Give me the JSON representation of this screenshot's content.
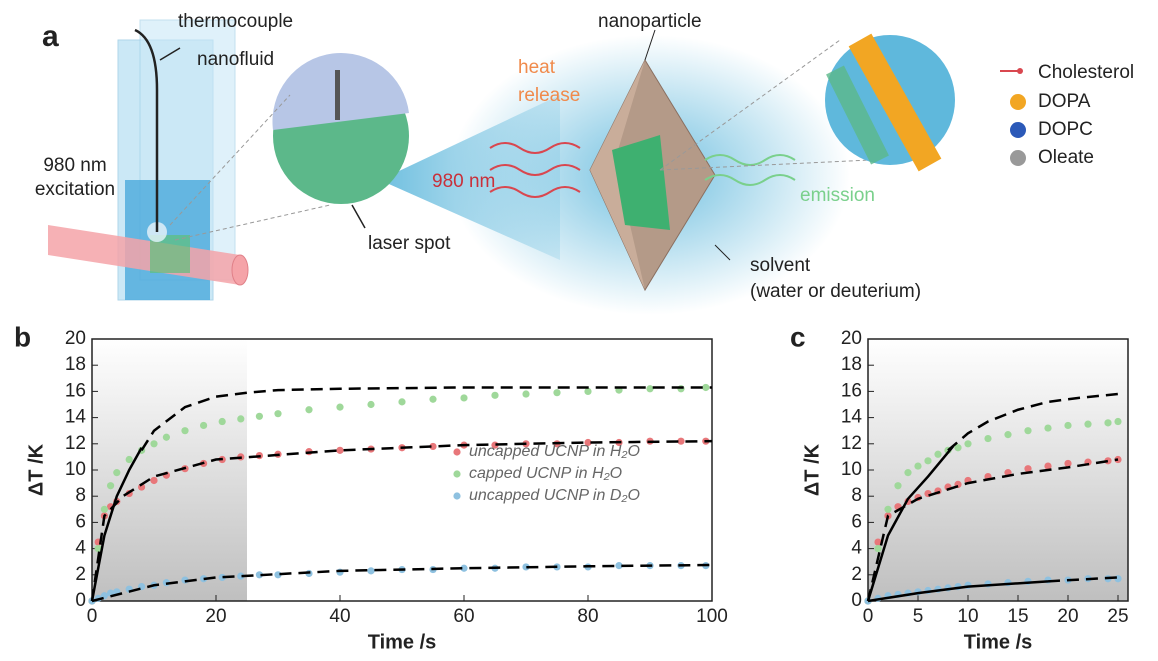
{
  "panel_a": {
    "label": "a",
    "thermocouple": "thermocouple",
    "nanofluid": "nanofluid",
    "excitation": [
      "980 nm",
      "excitation"
    ],
    "laser_spot": "laser spot",
    "nanoparticle": "nanoparticle",
    "heat_release": [
      "heat",
      "release"
    ],
    "wavelength": "980 nm",
    "emission": "emission",
    "solvent": [
      "solvent",
      "(water or deuterium)"
    ],
    "legend": [
      "Cholesterol",
      "DOPA",
      "DOPC",
      "Oleate"
    ]
  },
  "chart_data": [
    {
      "type": "scatter",
      "panel_label": "b",
      "x_label": "Time /s",
      "y_label": "ΔT /K",
      "xlim": [
        0,
        100
      ],
      "ylim": [
        0,
        20
      ],
      "xticks": [
        0,
        20,
        40,
        60,
        80,
        100
      ],
      "yticks": [
        0,
        2,
        4,
        6,
        8,
        10,
        12,
        14,
        16,
        18,
        20
      ],
      "shaded_xlim": [
        0,
        25
      ],
      "legend": "center right",
      "series": [
        {
          "name": "uncapped UCNP in H₂O",
          "color": "#e8777a",
          "mark": "dot",
          "x": [
            0,
            1,
            2,
            3,
            4,
            6,
            8,
            10,
            12,
            15,
            18,
            21,
            24,
            27,
            30,
            35,
            40,
            45,
            50,
            55,
            60,
            65,
            70,
            75,
            80,
            85,
            90,
            95,
            99
          ],
          "values": [
            0,
            4.5,
            6.5,
            7.2,
            7.6,
            8.2,
            8.7,
            9.2,
            9.6,
            10.1,
            10.5,
            10.8,
            11.0,
            11.1,
            11.2,
            11.4,
            11.5,
            11.6,
            11.7,
            11.8,
            11.9,
            11.9,
            12.0,
            12.0,
            12.1,
            12.1,
            12.2,
            12.2,
            12.2
          ]
        },
        {
          "name": "capped UCNP in H₂O",
          "color": "#9fd89a",
          "mark": "dot",
          "x": [
            0,
            1,
            2,
            3,
            4,
            6,
            8,
            10,
            12,
            15,
            18,
            21,
            24,
            27,
            30,
            35,
            40,
            45,
            50,
            55,
            60,
            65,
            70,
            75,
            80,
            85,
            90,
            95,
            99
          ],
          "values": [
            0,
            4,
            7,
            8.8,
            9.8,
            10.8,
            11.5,
            12.0,
            12.5,
            13.0,
            13.4,
            13.7,
            13.9,
            14.1,
            14.3,
            14.6,
            14.8,
            15.0,
            15.2,
            15.4,
            15.5,
            15.7,
            15.8,
            15.9,
            16.0,
            16.1,
            16.2,
            16.2,
            16.3
          ]
        },
        {
          "name": "uncapped UCNP in D₂O",
          "color": "#8ec1e0",
          "mark": "dot",
          "x": [
            0,
            1,
            2,
            3,
            4,
            6,
            8,
            10,
            12,
            15,
            18,
            21,
            24,
            27,
            30,
            35,
            40,
            45,
            50,
            55,
            60,
            65,
            70,
            75,
            80,
            85,
            90,
            95,
            99
          ],
          "values": [
            0,
            0.2,
            0.4,
            0.6,
            0.7,
            0.9,
            1.1,
            1.2,
            1.4,
            1.6,
            1.7,
            1.8,
            1.9,
            2.0,
            2.0,
            2.1,
            2.2,
            2.3,
            2.4,
            2.4,
            2.5,
            2.5,
            2.6,
            2.6,
            2.6,
            2.7,
            2.7,
            2.7,
            2.7
          ]
        },
        {
          "color": "#000000",
          "mark": "dashed",
          "x": [
            8,
            10,
            15,
            20,
            25,
            30,
            40,
            60,
            80,
            100
          ],
          "values": [
            11.5,
            13,
            14.8,
            15.6,
            15.9,
            16.1,
            16.2,
            16.3,
            16.3,
            16.3
          ]
        },
        {
          "color": "#000000",
          "mark": "solid",
          "x": [
            0,
            2,
            4,
            6,
            8
          ],
          "values": [
            0,
            5,
            8,
            10,
            11.7
          ]
        },
        {
          "color": "#000000",
          "mark": "dashed",
          "x": [
            0,
            2,
            5,
            10,
            20,
            40,
            60,
            80,
            100
          ],
          "values": [
            0,
            6.5,
            8,
            9.5,
            10.8,
            11.5,
            11.9,
            12.1,
            12.2
          ]
        },
        {
          "color": "#000000",
          "mark": "dashed",
          "x": [
            0,
            10,
            20,
            40,
            60,
            80,
            100
          ],
          "values": [
            0,
            1.2,
            1.8,
            2.3,
            2.5,
            2.65,
            2.75
          ]
        }
      ]
    },
    {
      "type": "scatter",
      "panel_label": "c",
      "x_label": "Time /s",
      "y_label": "ΔT /K",
      "xlim": [
        0,
        26
      ],
      "ylim": [
        0,
        20
      ],
      "xticks": [
        0,
        5,
        10,
        15,
        20,
        25
      ],
      "yticks": [
        0,
        2,
        4,
        6,
        8,
        10,
        12,
        14,
        16,
        18,
        20
      ],
      "shaded_xlim": [
        0,
        26
      ],
      "series": [
        {
          "color": "#e8777a",
          "mark": "dot",
          "x": [
            0,
            1,
            2,
            3,
            4,
            5,
            6,
            7,
            8,
            9,
            10,
            12,
            14,
            16,
            18,
            20,
            22,
            24,
            25
          ],
          "values": [
            0,
            4.5,
            6.5,
            7.2,
            7.6,
            7.9,
            8.2,
            8.4,
            8.7,
            8.9,
            9.2,
            9.5,
            9.8,
            10.1,
            10.3,
            10.5,
            10.6,
            10.7,
            10.8
          ]
        },
        {
          "color": "#9fd89a",
          "mark": "dot",
          "x": [
            0,
            1,
            2,
            3,
            4,
            5,
            6,
            7,
            8,
            9,
            10,
            12,
            14,
            16,
            18,
            20,
            22,
            24,
            25
          ],
          "values": [
            0,
            4,
            7,
            8.8,
            9.8,
            10.3,
            10.7,
            11.2,
            11.5,
            11.7,
            12.0,
            12.4,
            12.7,
            13.0,
            13.2,
            13.4,
            13.5,
            13.6,
            13.7
          ]
        },
        {
          "color": "#8ec1e0",
          "mark": "dot",
          "x": [
            0,
            1,
            2,
            3,
            4,
            5,
            6,
            7,
            8,
            9,
            10,
            12,
            14,
            16,
            18,
            20,
            22,
            24,
            25
          ],
          "values": [
            0,
            0.2,
            0.4,
            0.5,
            0.6,
            0.7,
            0.8,
            0.9,
            1.0,
            1.1,
            1.2,
            1.3,
            1.4,
            1.5,
            1.6,
            1.6,
            1.7,
            1.7,
            1.7
          ]
        },
        {
          "color": "#000000",
          "mark": "dashed",
          "x": [
            8,
            10,
            12,
            15,
            18,
            21,
            25
          ],
          "values": [
            11.5,
            12.8,
            13.7,
            14.6,
            15.2,
            15.5,
            15.8
          ]
        },
        {
          "color": "#000000",
          "mark": "solid",
          "x": [
            0,
            2,
            4,
            6,
            8.5
          ],
          "values": [
            0,
            5,
            7.8,
            9.5,
            11.8
          ]
        },
        {
          "color": "#000000",
          "mark": "dashed",
          "x": [
            0,
            2,
            5,
            10,
            15,
            20,
            25
          ],
          "values": [
            0,
            6.5,
            7.8,
            9,
            9.7,
            10.2,
            10.8
          ]
        },
        {
          "color": "#000000",
          "mark": "solid",
          "x": [
            0,
            5,
            10,
            18
          ],
          "values": [
            0,
            0.6,
            1.1,
            1.5
          ]
        },
        {
          "color": "#000000",
          "mark": "dashed",
          "x": [
            18,
            25
          ],
          "values": [
            1.5,
            1.8
          ]
        }
      ]
    }
  ]
}
